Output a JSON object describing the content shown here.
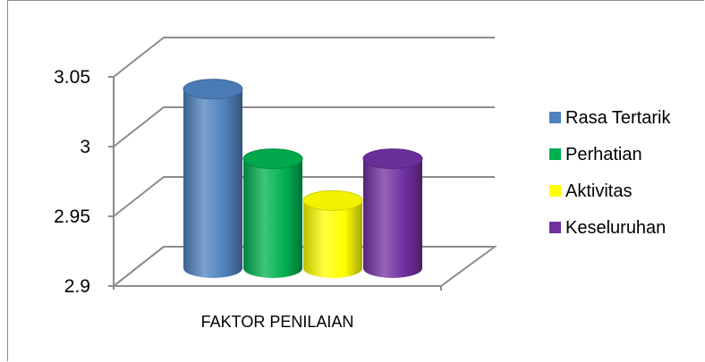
{
  "chart_data": {
    "type": "bar",
    "variant": "3d-cylinder",
    "categories": [
      "FAKTOR PENILAIAN"
    ],
    "series": [
      {
        "name": "Rasa Tertarik",
        "values": [
          3.04
        ],
        "color": "#4F81BD"
      },
      {
        "name": "Perhatian",
        "values": [
          2.99
        ],
        "color": "#00B050"
      },
      {
        "name": "Aktivitas",
        "values": [
          2.96
        ],
        "color": "#FFFF00"
      },
      {
        "name": "Keseluruhan",
        "values": [
          2.99
        ],
        "color": "#7030A0"
      }
    ],
    "y_ticks": [
      "2.9",
      "2.95",
      "3",
      "3.05"
    ],
    "ylim": [
      2.9,
      3.05
    ],
    "grid": true,
    "legend_position": "right"
  }
}
